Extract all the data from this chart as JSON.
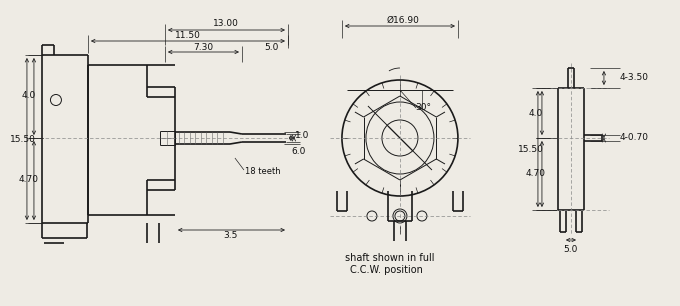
{
  "bg_color": "#eeebe4",
  "line_color": "#1a1a1a",
  "dim_color": "#222222",
  "fig_width": 6.51,
  "fig_height": 2.86,
  "annotations": {
    "dim_13": "13.00",
    "dim_11_5": "11.50",
    "dim_7_3": "7.30",
    "dim_5": "5.0",
    "dim_4": "4.0",
    "dim_15_5": "15.50",
    "dim_4_7": "4.70",
    "dim_1": "1.0",
    "dim_6": "6.0",
    "dim_3_5": "3.5",
    "dim_teeth": "18 teeth",
    "dim_dia": "Ø16.90",
    "dim_30": "30°",
    "dim_4_0_right": "4.0",
    "dim_15_5_right": "15.50",
    "dim_4_7_right": "4.70",
    "dim_4_3_5": "4-3.50",
    "dim_4_0_7": "4-0.70",
    "dim_5_right": "5.0",
    "shaft_text1": "shaft shown in full",
    "shaft_text2": "C.C.W. position"
  }
}
